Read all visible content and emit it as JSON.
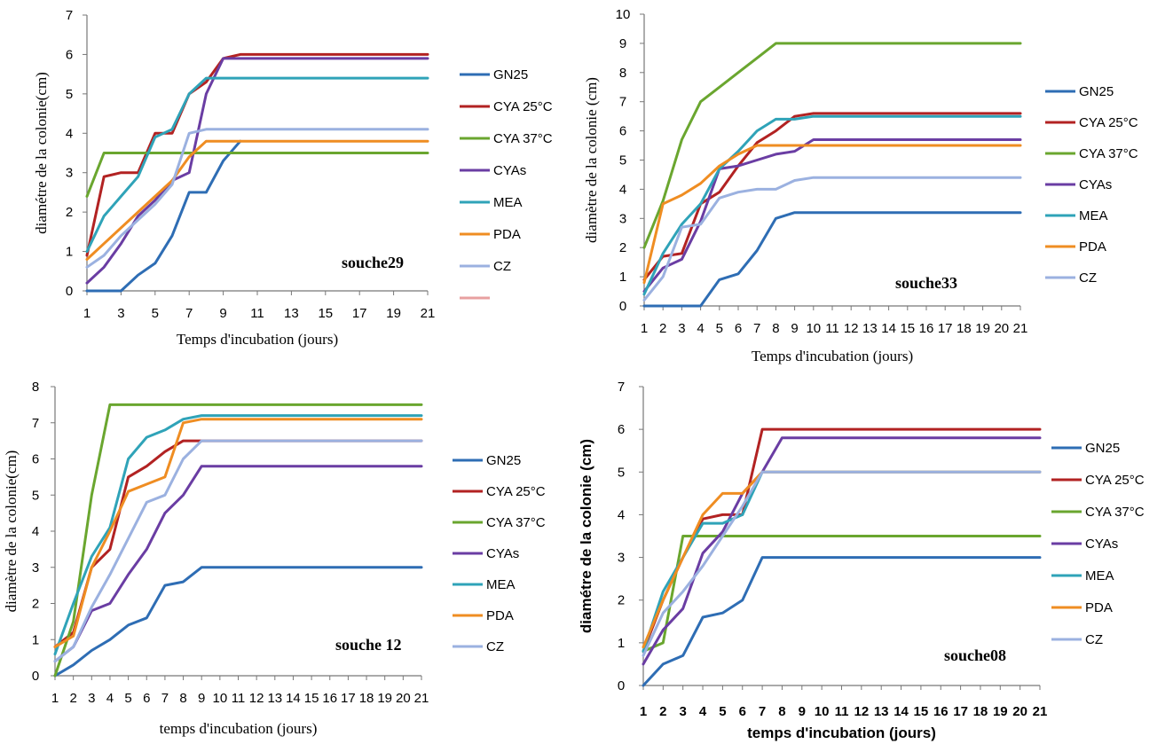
{
  "colors": {
    "GN25": "#2e6db4",
    "CYA 25°C": "#b22222",
    "CYA 37°C": "#6aa62f",
    "CYAs": "#6a3da3",
    "MEA": "#2fa3b8",
    "PDA": "#ef8d22",
    "CZ": "#9bb1e0",
    "extra": "#e8a0a0"
  },
  "chart_data": [
    {
      "type": "line",
      "annotation": "souche29",
      "xlabel": "Temps d'incubation  (jours)",
      "ylabel": "diamétre  de la colonie(cm)",
      "ylim": [
        0,
        7
      ],
      "yticks": [
        0,
        1,
        2,
        3,
        4,
        5,
        6,
        7
      ],
      "xlim": [
        1,
        21
      ],
      "xticks": [
        "1",
        "3",
        "5",
        "7",
        "9",
        "11",
        "13",
        "15",
        "17",
        "19",
        "21"
      ],
      "legend_position": "right",
      "legend_extra_swatch": true,
      "series": [
        {
          "name": "GN25",
          "x": [
            1,
            2,
            3,
            4,
            5,
            6,
            7,
            8,
            9,
            10
          ],
          "values": [
            0,
            0,
            0,
            0.4,
            0.7,
            1.4,
            2.5,
            2.5,
            3.3,
            3.8
          ]
        },
        {
          "name": "CYA 25°C",
          "x": [
            1,
            2,
            3,
            4,
            5,
            6,
            7,
            8,
            9,
            10,
            21
          ],
          "values": [
            0.9,
            2.9,
            3.0,
            3.0,
            4.0,
            4.0,
            5.0,
            5.3,
            5.9,
            6.0,
            6.0
          ]
        },
        {
          "name": "CYA 37°C",
          "x": [
            1,
            2,
            21
          ],
          "values": [
            2.4,
            3.5,
            3.5
          ]
        },
        {
          "name": "CYAs",
          "x": [
            1,
            2,
            3,
            4,
            5,
            6,
            7,
            8,
            9,
            21
          ],
          "values": [
            0.2,
            0.6,
            1.2,
            1.9,
            2.3,
            2.8,
            3.0,
            5.0,
            5.9,
            5.9
          ]
        },
        {
          "name": "MEA",
          "x": [
            1,
            2,
            3,
            4,
            5,
            6,
            7,
            8,
            21
          ],
          "values": [
            1.0,
            1.9,
            2.4,
            2.9,
            3.9,
            4.1,
            5.0,
            5.4,
            5.4
          ]
        },
        {
          "name": "PDA",
          "x": [
            1,
            2,
            3,
            4,
            5,
            6,
            7,
            8,
            21
          ],
          "values": [
            0.8,
            1.2,
            1.6,
            2.0,
            2.4,
            2.8,
            3.4,
            3.8,
            3.8
          ]
        },
        {
          "name": "CZ",
          "x": [
            1,
            2,
            3,
            4,
            5,
            6,
            7,
            8,
            21
          ],
          "values": [
            0.6,
            0.9,
            1.4,
            1.8,
            2.2,
            2.7,
            4.0,
            4.1,
            4.1
          ]
        }
      ]
    },
    {
      "type": "line",
      "annotation": "souche33",
      "xlabel": "Temps d'incubation  (jours)",
      "ylabel": "diamètre  de la colonie  (cm)",
      "ylim": [
        0,
        10
      ],
      "yticks": [
        0,
        1,
        2,
        3,
        4,
        5,
        6,
        7,
        8,
        9,
        10
      ],
      "xlim": [
        1,
        21
      ],
      "xticks": [
        "1",
        "2",
        "3",
        "4",
        "5",
        "6",
        "7",
        "8",
        "9",
        "10",
        "11",
        "12",
        "13",
        "14",
        "15",
        "16",
        "17",
        "18",
        "19",
        "20",
        "21"
      ],
      "legend_position": "right",
      "series": [
        {
          "name": "GN25",
          "x": [
            1,
            2,
            3,
            4,
            5,
            6,
            7,
            8,
            9,
            21
          ],
          "values": [
            0,
            0,
            0,
            0,
            0.9,
            1.1,
            1.9,
            3.0,
            3.2,
            3.2
          ]
        },
        {
          "name": "CYA 25°C",
          "x": [
            1,
            2,
            3,
            4,
            5,
            6,
            7,
            8,
            9,
            10,
            21
          ],
          "values": [
            0.9,
            1.7,
            1.8,
            3.5,
            3.9,
            4.8,
            5.6,
            6.0,
            6.5,
            6.6,
            6.6
          ]
        },
        {
          "name": "CYA 37°C",
          "x": [
            1,
            2,
            3,
            4,
            5,
            6,
            7,
            8,
            21
          ],
          "values": [
            2.0,
            3.6,
            5.7,
            7.0,
            7.5,
            8.0,
            8.5,
            9.0,
            9.0
          ]
        },
        {
          "name": "CYAs",
          "x": [
            1,
            2,
            3,
            4,
            5,
            6,
            7,
            8,
            9,
            10,
            21
          ],
          "values": [
            0.5,
            1.3,
            1.6,
            2.9,
            4.7,
            4.8,
            5.0,
            5.2,
            5.3,
            5.7,
            5.7
          ]
        },
        {
          "name": "MEA",
          "x": [
            1,
            2,
            3,
            4,
            5,
            6,
            7,
            8,
            9,
            10,
            21
          ],
          "values": [
            0.4,
            1.8,
            2.8,
            3.5,
            4.7,
            5.3,
            6.0,
            6.4,
            6.4,
            6.5,
            6.5
          ]
        },
        {
          "name": "PDA",
          "x": [
            1,
            2,
            3,
            4,
            5,
            6,
            7,
            8,
            21
          ],
          "values": [
            0.8,
            3.5,
            3.8,
            4.2,
            4.8,
            5.2,
            5.5,
            5.5,
            5.5
          ]
        },
        {
          "name": "CZ",
          "x": [
            1,
            2,
            3,
            4,
            5,
            6,
            7,
            8,
            9,
            10,
            21
          ],
          "values": [
            0.2,
            1.0,
            2.7,
            2.8,
            3.7,
            3.9,
            4.0,
            4.0,
            4.3,
            4.4,
            4.4
          ]
        }
      ]
    },
    {
      "type": "line",
      "annotation": "souche 12",
      "xlabel": "temps d'incubation  (jours)",
      "ylabel": "diamètre  de la colonie(cm)",
      "ylim": [
        0,
        8
      ],
      "yticks": [
        0,
        1,
        2,
        3,
        4,
        5,
        6,
        7,
        8
      ],
      "xlim": [
        1,
        21
      ],
      "xticks": [
        "1",
        "2",
        "3",
        "4",
        "5",
        "6",
        "7",
        "8",
        "9",
        "10",
        "11",
        "12",
        "13",
        "14",
        "15",
        "16",
        "17",
        "18",
        "19",
        "20",
        "21"
      ],
      "legend_position": "right",
      "series": [
        {
          "name": "GN25",
          "x": [
            1,
            2,
            3,
            4,
            5,
            6,
            7,
            8,
            9,
            21
          ],
          "values": [
            0.0,
            0.3,
            0.7,
            1.0,
            1.4,
            1.6,
            2.5,
            2.6,
            3.0,
            3.0
          ]
        },
        {
          "name": "CYA 25°C",
          "x": [
            1,
            2,
            3,
            4,
            5,
            6,
            7,
            8,
            9,
            21
          ],
          "values": [
            0.8,
            1.2,
            3.0,
            3.5,
            5.5,
            5.8,
            6.2,
            6.5,
            6.5,
            6.5
          ]
        },
        {
          "name": "CYA 37°C",
          "x": [
            1,
            2,
            3,
            4,
            21
          ],
          "values": [
            0.0,
            1.5,
            5.0,
            7.5,
            7.5
          ]
        },
        {
          "name": "CYAs",
          "x": [
            1,
            2,
            3,
            4,
            5,
            6,
            7,
            8,
            9,
            21
          ],
          "values": [
            0.4,
            0.8,
            1.8,
            2.0,
            2.8,
            3.5,
            4.5,
            5.0,
            5.8,
            5.8
          ]
        },
        {
          "name": "MEA",
          "x": [
            1,
            2,
            3,
            4,
            5,
            6,
            7,
            8,
            9,
            21
          ],
          "values": [
            0.6,
            2.0,
            3.3,
            4.1,
            6.0,
            6.6,
            6.8,
            7.1,
            7.2,
            7.2
          ]
        },
        {
          "name": "PDA",
          "x": [
            1,
            2,
            3,
            4,
            5,
            6,
            7,
            8,
            9,
            21
          ],
          "values": [
            0.8,
            1.1,
            3.0,
            4.0,
            5.1,
            5.3,
            5.5,
            7.0,
            7.1,
            7.1
          ]
        },
        {
          "name": "CZ",
          "x": [
            1,
            2,
            3,
            4,
            5,
            6,
            7,
            8,
            9,
            21
          ],
          "values": [
            0.4,
            0.8,
            1.9,
            2.8,
            3.8,
            4.8,
            5.0,
            6.0,
            6.5,
            6.5
          ]
        }
      ]
    },
    {
      "type": "line",
      "annotation": "souche08",
      "xlabel": "temps d'incubation (jours)",
      "ylabel": "diamétre de la colonie  (cm)",
      "ylim": [
        0,
        7
      ],
      "yticks": [
        0,
        1,
        2,
        3,
        4,
        5,
        6,
        7
      ],
      "xlim": [
        1,
        21
      ],
      "xticks": [
        "1",
        "2",
        "3",
        "4",
        "5",
        "6",
        "7",
        "8",
        "9",
        "10",
        "11",
        "12",
        "13",
        "14",
        "15",
        "16",
        "17",
        "18",
        "19",
        "20",
        "21"
      ],
      "legend_position": "right",
      "series": [
        {
          "name": "GN25",
          "x": [
            1,
            2,
            3,
            4,
            5,
            6,
            7,
            21
          ],
          "values": [
            0.0,
            0.5,
            0.7,
            1.6,
            1.7,
            2.0,
            3.0,
            3.0
          ]
        },
        {
          "name": "CYA 25°C",
          "x": [
            1,
            2,
            3,
            4,
            5,
            6,
            7,
            21
          ],
          "values": [
            0.8,
            2.0,
            3.0,
            3.9,
            4.0,
            4.0,
            6.0,
            6.0
          ]
        },
        {
          "name": "CYA 37°C",
          "x": [
            1,
            2,
            3,
            21
          ],
          "values": [
            0.8,
            1.0,
            3.5,
            3.5
          ]
        },
        {
          "name": "CYAs",
          "x": [
            1,
            2,
            3,
            4,
            5,
            6,
            7,
            8,
            21
          ],
          "values": [
            0.5,
            1.3,
            1.8,
            3.1,
            3.6,
            4.5,
            5.0,
            5.8,
            5.8
          ]
        },
        {
          "name": "MEA",
          "x": [
            1,
            2,
            3,
            4,
            5,
            6,
            7,
            21
          ],
          "values": [
            0.8,
            2.2,
            3.0,
            3.8,
            3.8,
            4.0,
            5.0,
            5.0
          ]
        },
        {
          "name": "PDA",
          "x": [
            1,
            2,
            3,
            4,
            5,
            6,
            7,
            21
          ],
          "values": [
            0.9,
            2.0,
            3.0,
            4.0,
            4.5,
            4.5,
            5.0,
            5.0
          ]
        },
        {
          "name": "CZ",
          "x": [
            1,
            2,
            3,
            4,
            5,
            6,
            7,
            21
          ],
          "values": [
            0.7,
            1.7,
            2.2,
            2.8,
            3.5,
            4.2,
            5.0,
            5.0
          ]
        }
      ]
    }
  ]
}
